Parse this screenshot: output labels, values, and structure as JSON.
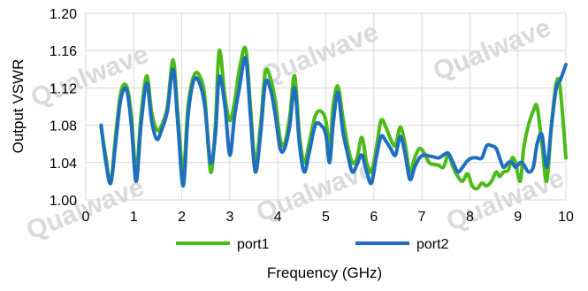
{
  "chart_data": {
    "type": "line",
    "title": "",
    "xlabel": "Frequency (GHz)",
    "ylabel": "Output VSWR",
    "xlim": [
      0,
      10
    ],
    "ylim": [
      1.0,
      1.2
    ],
    "x_ticks": [
      "0",
      "1",
      "2",
      "3",
      "4",
      "5",
      "6",
      "7",
      "8",
      "9",
      "10"
    ],
    "y_ticks": [
      "1.00",
      "1.04",
      "1.08",
      "1.12",
      "1.16",
      "1.20"
    ],
    "grid": "both",
    "legend_position": "bottom",
    "watermark": "Qualwave",
    "series": [
      {
        "name": "port1",
        "color": "#4CBB17",
        "points": [
          [
            0.32,
            1.078
          ],
          [
            0.42,
            1.045
          ],
          [
            0.52,
            1.018
          ],
          [
            0.62,
            1.068
          ],
          [
            0.73,
            1.115
          ],
          [
            0.85,
            1.122
          ],
          [
            0.95,
            1.09
          ],
          [
            1.05,
            1.03
          ],
          [
            1.15,
            1.09
          ],
          [
            1.27,
            1.133
          ],
          [
            1.37,
            1.095
          ],
          [
            1.48,
            1.075
          ],
          [
            1.58,
            1.08
          ],
          [
            1.7,
            1.1
          ],
          [
            1.82,
            1.15
          ],
          [
            1.92,
            1.09
          ],
          [
            2.03,
            1.03
          ],
          [
            2.13,
            1.1
          ],
          [
            2.25,
            1.133
          ],
          [
            2.37,
            1.133
          ],
          [
            2.48,
            1.11
          ],
          [
            2.6,
            1.03
          ],
          [
            2.7,
            1.08
          ],
          [
            2.78,
            1.16
          ],
          [
            2.9,
            1.11
          ],
          [
            3.0,
            1.085
          ],
          [
            3.1,
            1.105
          ],
          [
            3.2,
            1.14
          ],
          [
            3.33,
            1.162
          ],
          [
            3.43,
            1.1
          ],
          [
            3.53,
            1.04
          ],
          [
            3.64,
            1.08
          ],
          [
            3.74,
            1.137
          ],
          [
            3.85,
            1.13
          ],
          [
            3.95,
            1.105
          ],
          [
            4.05,
            1.065
          ],
          [
            4.14,
            1.06
          ],
          [
            4.25,
            1.09
          ],
          [
            4.35,
            1.133
          ],
          [
            4.45,
            1.07
          ],
          [
            4.55,
            1.04
          ],
          [
            4.65,
            1.06
          ],
          [
            4.78,
            1.09
          ],
          [
            4.9,
            1.095
          ],
          [
            5.0,
            1.085
          ],
          [
            5.08,
            1.055
          ],
          [
            5.15,
            1.1
          ],
          [
            5.25,
            1.122
          ],
          [
            5.35,
            1.09
          ],
          [
            5.45,
            1.06
          ],
          [
            5.55,
            1.04
          ],
          [
            5.65,
            1.045
          ],
          [
            5.75,
            1.067
          ],
          [
            5.85,
            1.04
          ],
          [
            5.95,
            1.03
          ],
          [
            6.05,
            1.055
          ],
          [
            6.15,
            1.085
          ],
          [
            6.25,
            1.078
          ],
          [
            6.35,
            1.065
          ],
          [
            6.45,
            1.058
          ],
          [
            6.55,
            1.078
          ],
          [
            6.65,
            1.06
          ],
          [
            6.75,
            1.03
          ],
          [
            6.85,
            1.045
          ],
          [
            6.95,
            1.055
          ],
          [
            7.05,
            1.05
          ],
          [
            7.15,
            1.04
          ],
          [
            7.25,
            1.038
          ],
          [
            7.35,
            1.037
          ],
          [
            7.45,
            1.035
          ],
          [
            7.55,
            1.048
          ],
          [
            7.65,
            1.035
          ],
          [
            7.75,
            1.025
          ],
          [
            7.85,
            1.02
          ],
          [
            7.95,
            1.028
          ],
          [
            8.05,
            1.015
          ],
          [
            8.15,
            1.012
          ],
          [
            8.25,
            1.018
          ],
          [
            8.35,
            1.015
          ],
          [
            8.45,
            1.02
          ],
          [
            8.55,
            1.03
          ],
          [
            8.62,
            1.025
          ],
          [
            8.7,
            1.03
          ],
          [
            8.8,
            1.032
          ],
          [
            8.88,
            1.045
          ],
          [
            8.95,
            1.04
          ],
          [
            9.05,
            1.02
          ],
          [
            9.12,
            1.055
          ],
          [
            9.22,
            1.08
          ],
          [
            9.32,
            1.095
          ],
          [
            9.4,
            1.1
          ],
          [
            9.5,
            1.06
          ],
          [
            9.6,
            1.02
          ],
          [
            9.7,
            1.08
          ],
          [
            9.8,
            1.125
          ],
          [
            9.88,
            1.12
          ],
          [
            10.0,
            1.045
          ]
        ]
      },
      {
        "name": "port2",
        "color": "#1F6FBF",
        "points": [
          [
            0.32,
            1.08
          ],
          [
            0.42,
            1.04
          ],
          [
            0.52,
            1.018
          ],
          [
            0.62,
            1.06
          ],
          [
            0.73,
            1.108
          ],
          [
            0.85,
            1.118
          ],
          [
            0.95,
            1.08
          ],
          [
            1.05,
            1.02
          ],
          [
            1.15,
            1.08
          ],
          [
            1.27,
            1.125
          ],
          [
            1.37,
            1.085
          ],
          [
            1.48,
            1.065
          ],
          [
            1.58,
            1.075
          ],
          [
            1.7,
            1.095
          ],
          [
            1.82,
            1.14
          ],
          [
            1.92,
            1.08
          ],
          [
            2.03,
            1.015
          ],
          [
            2.13,
            1.09
          ],
          [
            2.25,
            1.128
          ],
          [
            2.37,
            1.125
          ],
          [
            2.48,
            1.1
          ],
          [
            2.6,
            1.04
          ],
          [
            2.7,
            1.07
          ],
          [
            2.78,
            1.132
          ],
          [
            2.9,
            1.1
          ],
          [
            3.0,
            1.048
          ],
          [
            3.1,
            1.09
          ],
          [
            3.2,
            1.12
          ],
          [
            3.33,
            1.152
          ],
          [
            3.43,
            1.09
          ],
          [
            3.53,
            1.03
          ],
          [
            3.64,
            1.07
          ],
          [
            3.74,
            1.125
          ],
          [
            3.85,
            1.118
          ],
          [
            3.95,
            1.09
          ],
          [
            4.05,
            1.055
          ],
          [
            4.14,
            1.055
          ],
          [
            4.25,
            1.08
          ],
          [
            4.35,
            1.12
          ],
          [
            4.45,
            1.06
          ],
          [
            4.55,
            1.03
          ],
          [
            4.65,
            1.05
          ],
          [
            4.78,
            1.08
          ],
          [
            4.9,
            1.08
          ],
          [
            5.0,
            1.07
          ],
          [
            5.08,
            1.04
          ],
          [
            5.15,
            1.08
          ],
          [
            5.25,
            1.115
          ],
          [
            5.35,
            1.075
          ],
          [
            5.45,
            1.05
          ],
          [
            5.55,
            1.03
          ],
          [
            5.65,
            1.038
          ],
          [
            5.75,
            1.048
          ],
          [
            5.85,
            1.03
          ],
          [
            5.95,
            1.018
          ],
          [
            6.05,
            1.045
          ],
          [
            6.15,
            1.068
          ],
          [
            6.25,
            1.063
          ],
          [
            6.35,
            1.055
          ],
          [
            6.45,
            1.048
          ],
          [
            6.55,
            1.068
          ],
          [
            6.65,
            1.05
          ],
          [
            6.75,
            1.022
          ],
          [
            6.85,
            1.035
          ],
          [
            6.95,
            1.045
          ],
          [
            7.05,
            1.048
          ],
          [
            7.15,
            1.047
          ],
          [
            7.25,
            1.046
          ],
          [
            7.35,
            1.045
          ],
          [
            7.45,
            1.048
          ],
          [
            7.55,
            1.05
          ],
          [
            7.65,
            1.04
          ],
          [
            7.75,
            1.03
          ],
          [
            7.85,
            1.035
          ],
          [
            7.95,
            1.042
          ],
          [
            8.05,
            1.045
          ],
          [
            8.15,
            1.045
          ],
          [
            8.25,
            1.045
          ],
          [
            8.35,
            1.058
          ],
          [
            8.45,
            1.058
          ],
          [
            8.55,
            1.055
          ],
          [
            8.62,
            1.045
          ],
          [
            8.7,
            1.035
          ],
          [
            8.8,
            1.04
          ],
          [
            8.88,
            1.04
          ],
          [
            8.95,
            1.035
          ],
          [
            9.05,
            1.04
          ],
          [
            9.12,
            1.038
          ],
          [
            9.22,
            1.03
          ],
          [
            9.32,
            1.035
          ],
          [
            9.4,
            1.06
          ],
          [
            9.5,
            1.07
          ],
          [
            9.6,
            1.035
          ],
          [
            9.7,
            1.08
          ],
          [
            9.8,
            1.12
          ],
          [
            9.88,
            1.128
          ],
          [
            10.0,
            1.145
          ]
        ]
      }
    ]
  }
}
